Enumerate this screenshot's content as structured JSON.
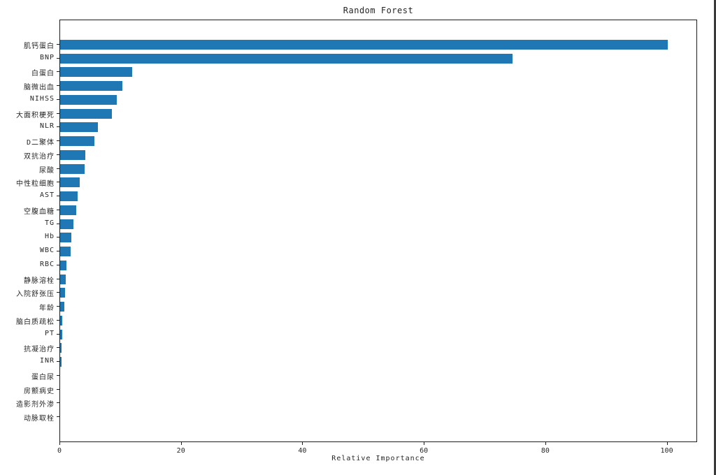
{
  "window": {
    "edge_color": "#3a3a3a",
    "background": "#ffffff"
  },
  "chart_data": {
    "type": "bar",
    "orientation": "horizontal",
    "title": "Random Forest",
    "xlabel": "Relative Importance",
    "ylabel": "",
    "categories": [
      "肌钙蛋白",
      "BNP",
      "白蛋白",
      "脑微出血",
      "NIHSS",
      "大面积梗死",
      "NLR",
      "D二聚体",
      "双抗治疗",
      "尿酸",
      "中性粒细胞",
      "AST",
      "空腹血糖",
      "TG",
      "Hb",
      "WBC",
      "RBC",
      "静脉溶栓",
      "入院舒张压",
      "年龄",
      "脑白质疏松",
      "PT",
      "抗凝治疗",
      "INR",
      "蛋白尿",
      "房颤病史",
      "造影剂外渗",
      "动脉取栓"
    ],
    "values": [
      100,
      74.5,
      11.9,
      10.3,
      9.3,
      8.5,
      6.2,
      5.6,
      4.2,
      4.0,
      3.2,
      2.9,
      2.7,
      2.2,
      1.8,
      1.7,
      1.0,
      0.9,
      0.8,
      0.7,
      0.4,
      0.3,
      0.28,
      0.22,
      0.0,
      0.0,
      0.0,
      0.0
    ],
    "xlim": [
      0,
      105
    ],
    "xticks": [
      0,
      20,
      40,
      60,
      80,
      100
    ],
    "bar_color": "#1f77b4",
    "text_color": "#262626",
    "spine_color": "#1c1c1c",
    "grid": false,
    "legend": null
  }
}
